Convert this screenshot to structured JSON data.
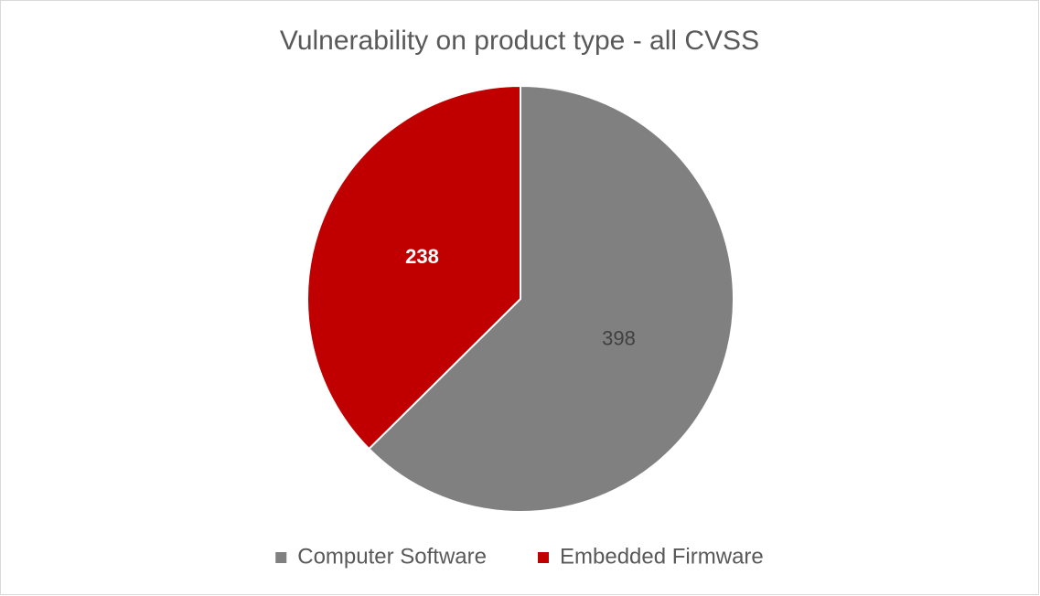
{
  "chart_data": {
    "type": "pie",
    "title": "Vulnerability on product type - all CVSS",
    "categories": [
      "Computer Software",
      "Embedded Firmware"
    ],
    "values": [
      398,
      238
    ],
    "colors": [
      "#808080",
      "#c00000"
    ],
    "label_colors": [
      "#404040",
      "#ffffff"
    ],
    "legend": "bottom"
  }
}
